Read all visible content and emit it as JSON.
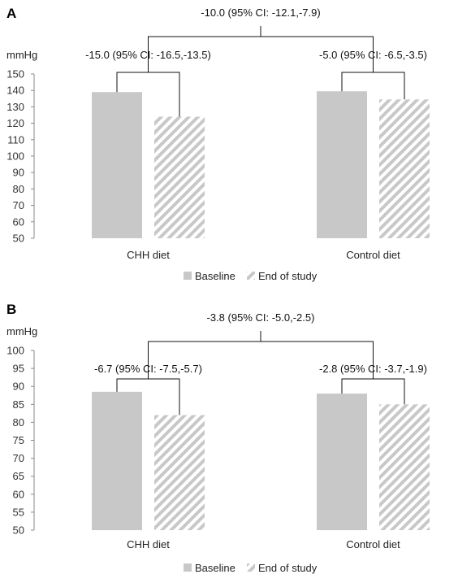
{
  "chart_data": [
    {
      "panel_label": "A",
      "type": "bar",
      "ylabel": "mmHg",
      "ylim": [
        50,
        150
      ],
      "yticks": [
        50,
        60,
        70,
        80,
        90,
        100,
        110,
        120,
        130,
        140,
        150
      ],
      "categories": [
        "CHH diet",
        "Control diet"
      ],
      "series": [
        {
          "name": "Baseline",
          "values": [
            139,
            139.5
          ],
          "pattern": "solid",
          "color": "#c8c8c8"
        },
        {
          "name": "End of study",
          "values": [
            124,
            134.5
          ],
          "pattern": "hatched",
          "color": "#c8c8c8"
        }
      ],
      "annotations": {
        "between": "-10.0 (95% CI: -12.1,-7.9)",
        "within": [
          "-15.0 (95% CI: -16.5,-13.5)",
          "-5.0 (95% CI: -6.5,-3.5)"
        ]
      },
      "legend": {
        "position": "bottom",
        "items": [
          "Baseline",
          "End of study"
        ]
      },
      "grid": false
    },
    {
      "panel_label": "B",
      "type": "bar",
      "ylabel": "mmHg",
      "ylim": [
        50,
        100
      ],
      "yticks": [
        50,
        55,
        60,
        65,
        70,
        75,
        80,
        85,
        90,
        95,
        100
      ],
      "categories": [
        "CHH diet",
        "Control diet"
      ],
      "series": [
        {
          "name": "Baseline",
          "values": [
            88.5,
            88
          ],
          "pattern": "solid",
          "color": "#c8c8c8"
        },
        {
          "name": "End of study",
          "values": [
            82,
            85
          ],
          "pattern": "hatched",
          "color": "#c8c8c8"
        }
      ],
      "annotations": {
        "between": "-3.8 (95% CI: -5.0,-2.5)",
        "within": [
          "-6.7 (95% CI: -7.5,-5.7)",
          "-2.8 (95% CI: -3.7,-1.9)"
        ]
      },
      "legend": {
        "position": "bottom",
        "items": [
          "Baseline",
          "End of study"
        ]
      },
      "grid": false
    }
  ]
}
